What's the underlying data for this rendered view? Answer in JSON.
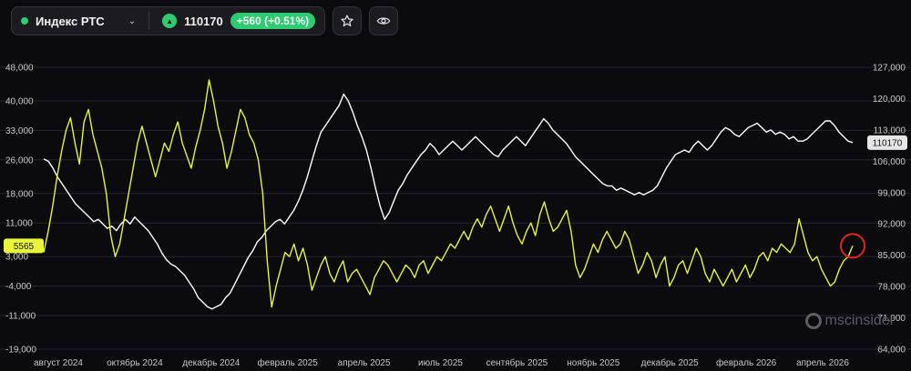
{
  "header": {
    "instrument_name": "Индекс РТС",
    "price": "110170",
    "change": "+560 (+0.51%)",
    "status_color": "#2ecc71",
    "favorite_icon": "star-icon",
    "watch_icon": "eye-icon",
    "dropdown_icon": "chevron-down-icon"
  },
  "watermark": "mscinsider",
  "chart_data": {
    "type": "line",
    "x_ticks": [
      "август 2024",
      "октябрь 2024",
      "декабрь 2024",
      "февраль 2025",
      "апрель 2025",
      "июль 2025",
      "сентябрь 2025",
      "ноябрь 2025",
      "декабрь 2025",
      "февраль 2026",
      "апрель 2026"
    ],
    "left_axis": {
      "ticks": [
        "48,000",
        "40,000",
        "33,000",
        "26,000",
        "18,000",
        "11,000",
        "3,000",
        "-4,000",
        "-11,000",
        "-19,000"
      ],
      "ylim": [
        -19000,
        48000
      ]
    },
    "right_axis": {
      "ticks": [
        "127,000",
        "120,000",
        "113,000",
        "106,000",
        "99,000",
        "92,000",
        "85,000",
        "78,000",
        "71,000",
        "64,000"
      ],
      "ylim": [
        64000,
        127000
      ]
    },
    "last_value_left": "5565",
    "last_value_right": "110170",
    "colors": {
      "white_series": "#ffffff",
      "yellow_series": "#e8f53a",
      "marker": "#e02424",
      "grid": "#26262b"
    },
    "series": [
      {
        "axis": "right",
        "values": [
          106500,
          106000,
          104500,
          102500,
          101000,
          99500,
          98000,
          96500,
          95500,
          94500,
          93500,
          92500,
          93000,
          92000,
          91000,
          91500,
          90500,
          92000,
          93000,
          92000,
          93500,
          92500,
          91500,
          90500,
          89000,
          87500,
          85500,
          84000,
          83000,
          82500,
          81500,
          80500,
          79000,
          77500,
          75500,
          74500,
          73500,
          73000,
          73500,
          74000,
          75500,
          76500,
          78500,
          80500,
          82500,
          84500,
          86000,
          88000,
          89000,
          90500,
          91500,
          92500,
          93000,
          92000,
          93500,
          95000,
          97000,
          99500,
          102500,
          106000,
          109500,
          112500,
          114000,
          115500,
          117000,
          118500,
          121000,
          119500,
          117000,
          114000,
          111500,
          108500,
          104500,
          100000,
          96000,
          93000,
          94500,
          97000,
          99500,
          101000,
          103000,
          104500,
          106000,
          107500,
          108500,
          110000,
          109000,
          107500,
          108500,
          109500,
          110500,
          109500,
          108500,
          109500,
          110500,
          111500,
          110500,
          109500,
          108500,
          107500,
          107000,
          108500,
          109500,
          110500,
          111500,
          110500,
          109500,
          111000,
          112500,
          114000,
          115500,
          114500,
          113000,
          112000,
          111000,
          110000,
          108500,
          107000,
          106000,
          105000,
          104000,
          103000,
          102000,
          101000,
          100500,
          100500,
          99500,
          100000,
          99500,
          99000,
          98500,
          99000,
          98500,
          99000,
          99500,
          100500,
          102500,
          104500,
          106000,
          107500,
          108000,
          108500,
          108000,
          109500,
          110500,
          109500,
          108500,
          109500,
          111000,
          112500,
          113500,
          113000,
          112000,
          111500,
          112500,
          113500,
          114000,
          114500,
          113500,
          112500,
          113000,
          112000,
          112500,
          112000,
          111000,
          111500,
          110500,
          110500,
          111000,
          112000,
          113000,
          114000,
          115000,
          115000,
          114000,
          112500,
          111500,
          110500,
          110170
        ]
      },
      {
        "axis": "left",
        "values": [
          4000,
          9000,
          15000,
          22000,
          28000,
          33000,
          36000,
          30000,
          25000,
          35000,
          38000,
          32000,
          28000,
          24000,
          18000,
          8000,
          3000,
          6000,
          12000,
          18000,
          24000,
          30000,
          34000,
          30000,
          26000,
          22000,
          26000,
          30000,
          28000,
          32000,
          35000,
          30000,
          27000,
          24000,
          29000,
          33000,
          38000,
          45000,
          40000,
          34000,
          30000,
          24000,
          28000,
          33000,
          38000,
          36000,
          32000,
          30000,
          26000,
          18000,
          2000,
          -9000,
          -4000,
          0,
          4000,
          3000,
          6000,
          2000,
          5000,
          1000,
          -5000,
          -2000,
          1000,
          3000,
          -1000,
          -3000,
          0,
          2000,
          -3000,
          -1000,
          0,
          -2000,
          -4000,
          -6000,
          -2000,
          0,
          2000,
          1000,
          -1000,
          -3000,
          -1000,
          1000,
          0,
          -2000,
          1000,
          2000,
          -1000,
          1000,
          3000,
          2000,
          4000,
          6000,
          5000,
          7000,
          9000,
          7000,
          10000,
          12000,
          10000,
          13000,
          15000,
          12000,
          9000,
          12000,
          15000,
          11000,
          8000,
          6000,
          9000,
          11000,
          8000,
          13000,
          16000,
          12000,
          9000,
          10000,
          12000,
          14000,
          9000,
          1000,
          -2000,
          0,
          3000,
          6000,
          4000,
          7000,
          9000,
          7000,
          5000,
          6000,
          9000,
          7000,
          3000,
          -1000,
          1000,
          4000,
          2000,
          -2000,
          1000,
          3000,
          -4000,
          -2000,
          1000,
          2000,
          -1000,
          2000,
          5000,
          3000,
          -1000,
          -3000,
          0,
          -2000,
          -4000,
          -2000,
          0,
          -3000,
          -1000,
          1000,
          -2000,
          0,
          3000,
          4000,
          2000,
          5000,
          4000,
          6000,
          5000,
          4000,
          6000,
          12000,
          8000,
          4000,
          2000,
          3000,
          0,
          -2000,
          -4000,
          -3000,
          0,
          2000,
          3000,
          5565
        ]
      }
    ]
  }
}
